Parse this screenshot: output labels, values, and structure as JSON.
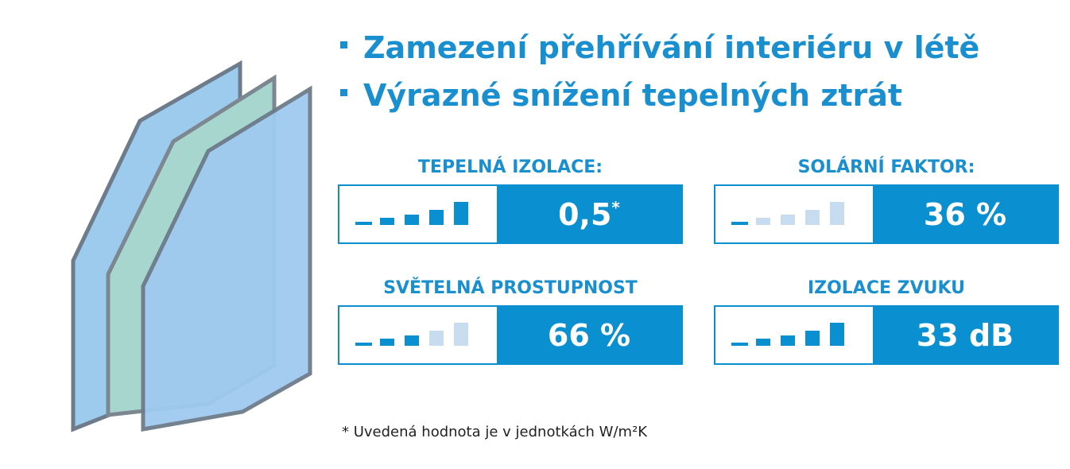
{
  "bullets": [
    "Zamezení přehřívání interiéru v létě",
    "Výrazné snížení tepelných ztrát"
  ],
  "panels": [
    {
      "label": "TEPELNÁ IZOLACE:",
      "value": "0,5",
      "note_marker": "*",
      "level": 5
    },
    {
      "label": "SOLÁRNÍ FAKTOR:",
      "value": "36 %",
      "level": 1
    },
    {
      "label": "SVĚTELNÁ PROSTUPNOST",
      "value": "66 %",
      "level": 3
    },
    {
      "label": "IZOLACE ZVUKU",
      "value": "33 dB",
      "level": 5
    }
  ],
  "footnote": "* Uvedená hodnota je v jednotkách W/m²K"
}
